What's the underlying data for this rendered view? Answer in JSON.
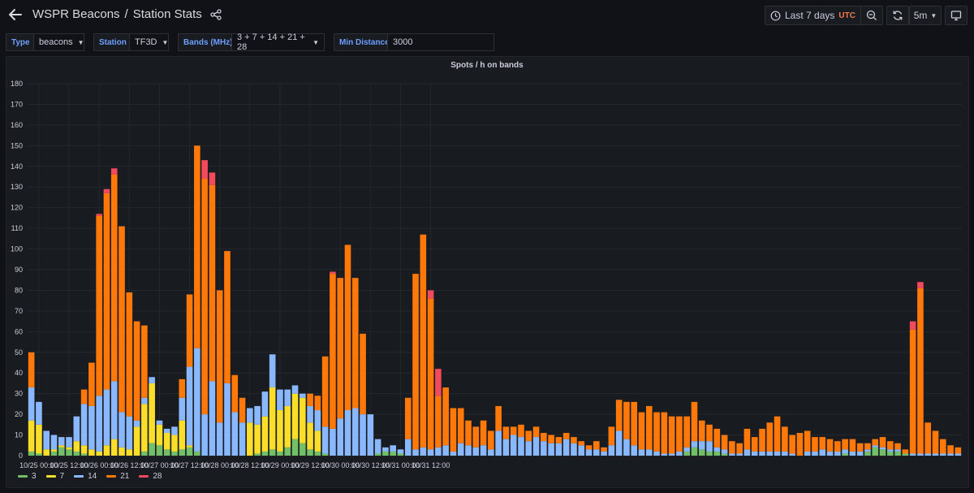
{
  "header": {
    "title": "WSPR Beacons",
    "separator": "/",
    "subtitle": "Station Stats",
    "time_range": "Last 7 days",
    "timezone": "UTC",
    "refresh_interval": "5m"
  },
  "variables": [
    {
      "label": "Type",
      "value": "beacons"
    },
    {
      "label": "Station",
      "value": "TF3D"
    },
    {
      "label": "Bands (MHz)",
      "value": "3 + 7 + 14 + 21 + 28"
    },
    {
      "label": "Min Distance",
      "value": "3000"
    }
  ],
  "colors": {
    "background": "#111217",
    "panel": "#181b1f",
    "accent": "#6e9fff",
    "utc": "#f5794d"
  },
  "chart_data": {
    "type": "bar",
    "stacked": true,
    "title": "Spots / h on bands",
    "ylim": [
      0,
      180
    ],
    "yticks": [
      0,
      10,
      20,
      30,
      40,
      50,
      60,
      70,
      80,
      90,
      100,
      110,
      120,
      130,
      140,
      150,
      160,
      170,
      180
    ],
    "grid": true,
    "legend_position": "bottom-left",
    "x_start": "10/24 21:00",
    "x_step_hours": 3,
    "x_tick_labels": [
      "10/25 00:00",
      "10/25 12:00",
      "10/26 00:00",
      "10/26 12:00",
      "10/27 00:00",
      "10/27 12:00",
      "10/28 00:00",
      "10/28 12:00",
      "10/29 00:00",
      "10/29 12:00",
      "10/30 00:00",
      "10/30 12:00",
      "10/31 00:00",
      "10/31 12:00"
    ],
    "series": [
      {
        "name": "3",
        "color": "#73bf69",
        "values": [
          2,
          1,
          0,
          2,
          4,
          3,
          2,
          1,
          0,
          0,
          0,
          0,
          0,
          0,
          0,
          2,
          6,
          5,
          3,
          2,
          3,
          4,
          2,
          0,
          0,
          0,
          0,
          0,
          0,
          0,
          1,
          2,
          3,
          2,
          4,
          8,
          6,
          3,
          2,
          1,
          0,
          0,
          0,
          0,
          0,
          0,
          1,
          2,
          2,
          1,
          0,
          0,
          0,
          0,
          0,
          0,
          0,
          0,
          0,
          0,
          0,
          0,
          0,
          0,
          0,
          0,
          0,
          0,
          0,
          0,
          0,
          0,
          0,
          0,
          0,
          0,
          0,
          0,
          0,
          0,
          0,
          0,
          0,
          0,
          0,
          0,
          0,
          2,
          4,
          3,
          2,
          2,
          1,
          0,
          0,
          0,
          0,
          0,
          0,
          0,
          0,
          0,
          0,
          0,
          0,
          0,
          0,
          0,
          1,
          0,
          0,
          2,
          4,
          3,
          2,
          2,
          1,
          0,
          0,
          0,
          0,
          0,
          0,
          0
        ]
      },
      {
        "name": "7",
        "color": "#fade2a",
        "values": [
          15,
          14,
          3,
          1,
          1,
          1,
          5,
          4,
          3,
          2,
          5,
          8,
          4,
          3,
          14,
          23,
          29,
          10,
          8,
          8,
          14,
          1,
          0,
          0,
          0,
          0,
          0,
          0,
          0,
          16,
          14,
          17,
          30,
          20,
          20,
          22,
          22,
          13,
          10,
          0,
          0,
          0,
          0,
          0,
          0,
          0,
          0,
          0,
          0,
          0,
          0,
          0,
          0,
          0,
          0,
          0,
          0,
          0,
          0,
          0,
          0,
          0,
          0,
          0,
          0,
          0,
          0,
          0,
          0,
          0,
          0,
          0,
          0,
          0,
          0,
          0,
          0,
          0,
          0,
          0,
          0,
          0,
          0,
          0,
          0,
          0,
          0,
          0,
          0,
          0,
          0,
          0,
          0,
          0,
          0,
          0,
          0,
          0,
          0,
          0,
          0,
          0,
          0,
          0,
          0,
          0,
          0,
          0,
          0,
          0,
          0,
          0,
          0,
          0,
          0,
          0,
          0,
          0,
          0,
          0,
          0,
          0,
          0,
          0
        ]
      },
      {
        "name": "14",
        "color": "#8ab8ff",
        "values": [
          16,
          11,
          9,
          7,
          4,
          5,
          12,
          20,
          21,
          27,
          27,
          28,
          17,
          16,
          3,
          3,
          3,
          2,
          2,
          4,
          11,
          38,
          50,
          20,
          36,
          16,
          35,
          21,
          16,
          7,
          9,
          12,
          16,
          10,
          8,
          4,
          2,
          8,
          10,
          13,
          13,
          18,
          22,
          23,
          20,
          20,
          7,
          2,
          3,
          2,
          8,
          3,
          4,
          3,
          4,
          5,
          2,
          6,
          5,
          4,
          5,
          3,
          12,
          8,
          10,
          9,
          7,
          9,
          7,
          6,
          6,
          8,
          6,
          5,
          3,
          3,
          2,
          5,
          12,
          8,
          5,
          3,
          3,
          2,
          1,
          1,
          2,
          2,
          3,
          4,
          5,
          2,
          2,
          1,
          1,
          3,
          2,
          2,
          2,
          2,
          2,
          1,
          0,
          2,
          2,
          3,
          2,
          2,
          2,
          2,
          2,
          1,
          1,
          1,
          1,
          1,
          0,
          1,
          1,
          1,
          1,
          1,
          1,
          1
        ]
      },
      {
        "name": "21",
        "color": "#ff780a",
        "values": [
          17,
          0,
          0,
          0,
          0,
          0,
          0,
          7,
          21,
          87,
          95,
          100,
          90,
          60,
          48,
          35,
          0,
          0,
          0,
          0,
          9,
          35,
          98,
          114,
          95,
          64,
          64,
          18,
          12,
          0,
          0,
          0,
          0,
          0,
          0,
          0,
          0,
          6,
          7,
          34,
          75,
          68,
          80,
          63,
          39,
          0,
          0,
          0,
          0,
          0,
          20,
          85,
          103,
          73,
          25,
          28,
          21,
          17,
          12,
          10,
          12,
          9,
          12,
          6,
          4,
          6,
          5,
          5,
          4,
          4,
          3,
          3,
          3,
          2,
          2,
          4,
          2,
          9,
          15,
          18,
          21,
          18,
          21,
          19,
          20,
          18,
          17,
          15,
          19,
          10,
          8,
          9,
          7,
          6,
          5,
          10,
          7,
          11,
          14,
          17,
          12,
          9,
          11,
          10,
          7,
          6,
          6,
          5,
          5,
          6,
          4,
          3,
          3,
          5,
          4,
          3,
          2,
          60,
          80,
          15,
          11,
          7,
          4,
          3
        ]
      },
      {
        "name": "28",
        "color": "#f2495c",
        "values": [
          0,
          0,
          0,
          0,
          0,
          0,
          0,
          0,
          0,
          1,
          2,
          3,
          0,
          0,
          0,
          0,
          0,
          0,
          0,
          0,
          0,
          0,
          0,
          9,
          6,
          0,
          0,
          0,
          0,
          0,
          0,
          0,
          0,
          0,
          0,
          0,
          0,
          0,
          0,
          0,
          1,
          0,
          0,
          0,
          0,
          0,
          0,
          0,
          0,
          0,
          0,
          0,
          0,
          4,
          13,
          0,
          0,
          0,
          0,
          0,
          0,
          0,
          0,
          0,
          0,
          0,
          0,
          0,
          0,
          0,
          0,
          0,
          0,
          0,
          0,
          0,
          0,
          0,
          0,
          0,
          0,
          0,
          0,
          0,
          0,
          0,
          0,
          0,
          0,
          0,
          0,
          0,
          0,
          0,
          0,
          0,
          0,
          0,
          0,
          0,
          0,
          0,
          0,
          0,
          0,
          0,
          0,
          0,
          0,
          0,
          0,
          0,
          0,
          0,
          0,
          0,
          0,
          4,
          3,
          0,
          0,
          0,
          0,
          0
        ]
      }
    ]
  }
}
